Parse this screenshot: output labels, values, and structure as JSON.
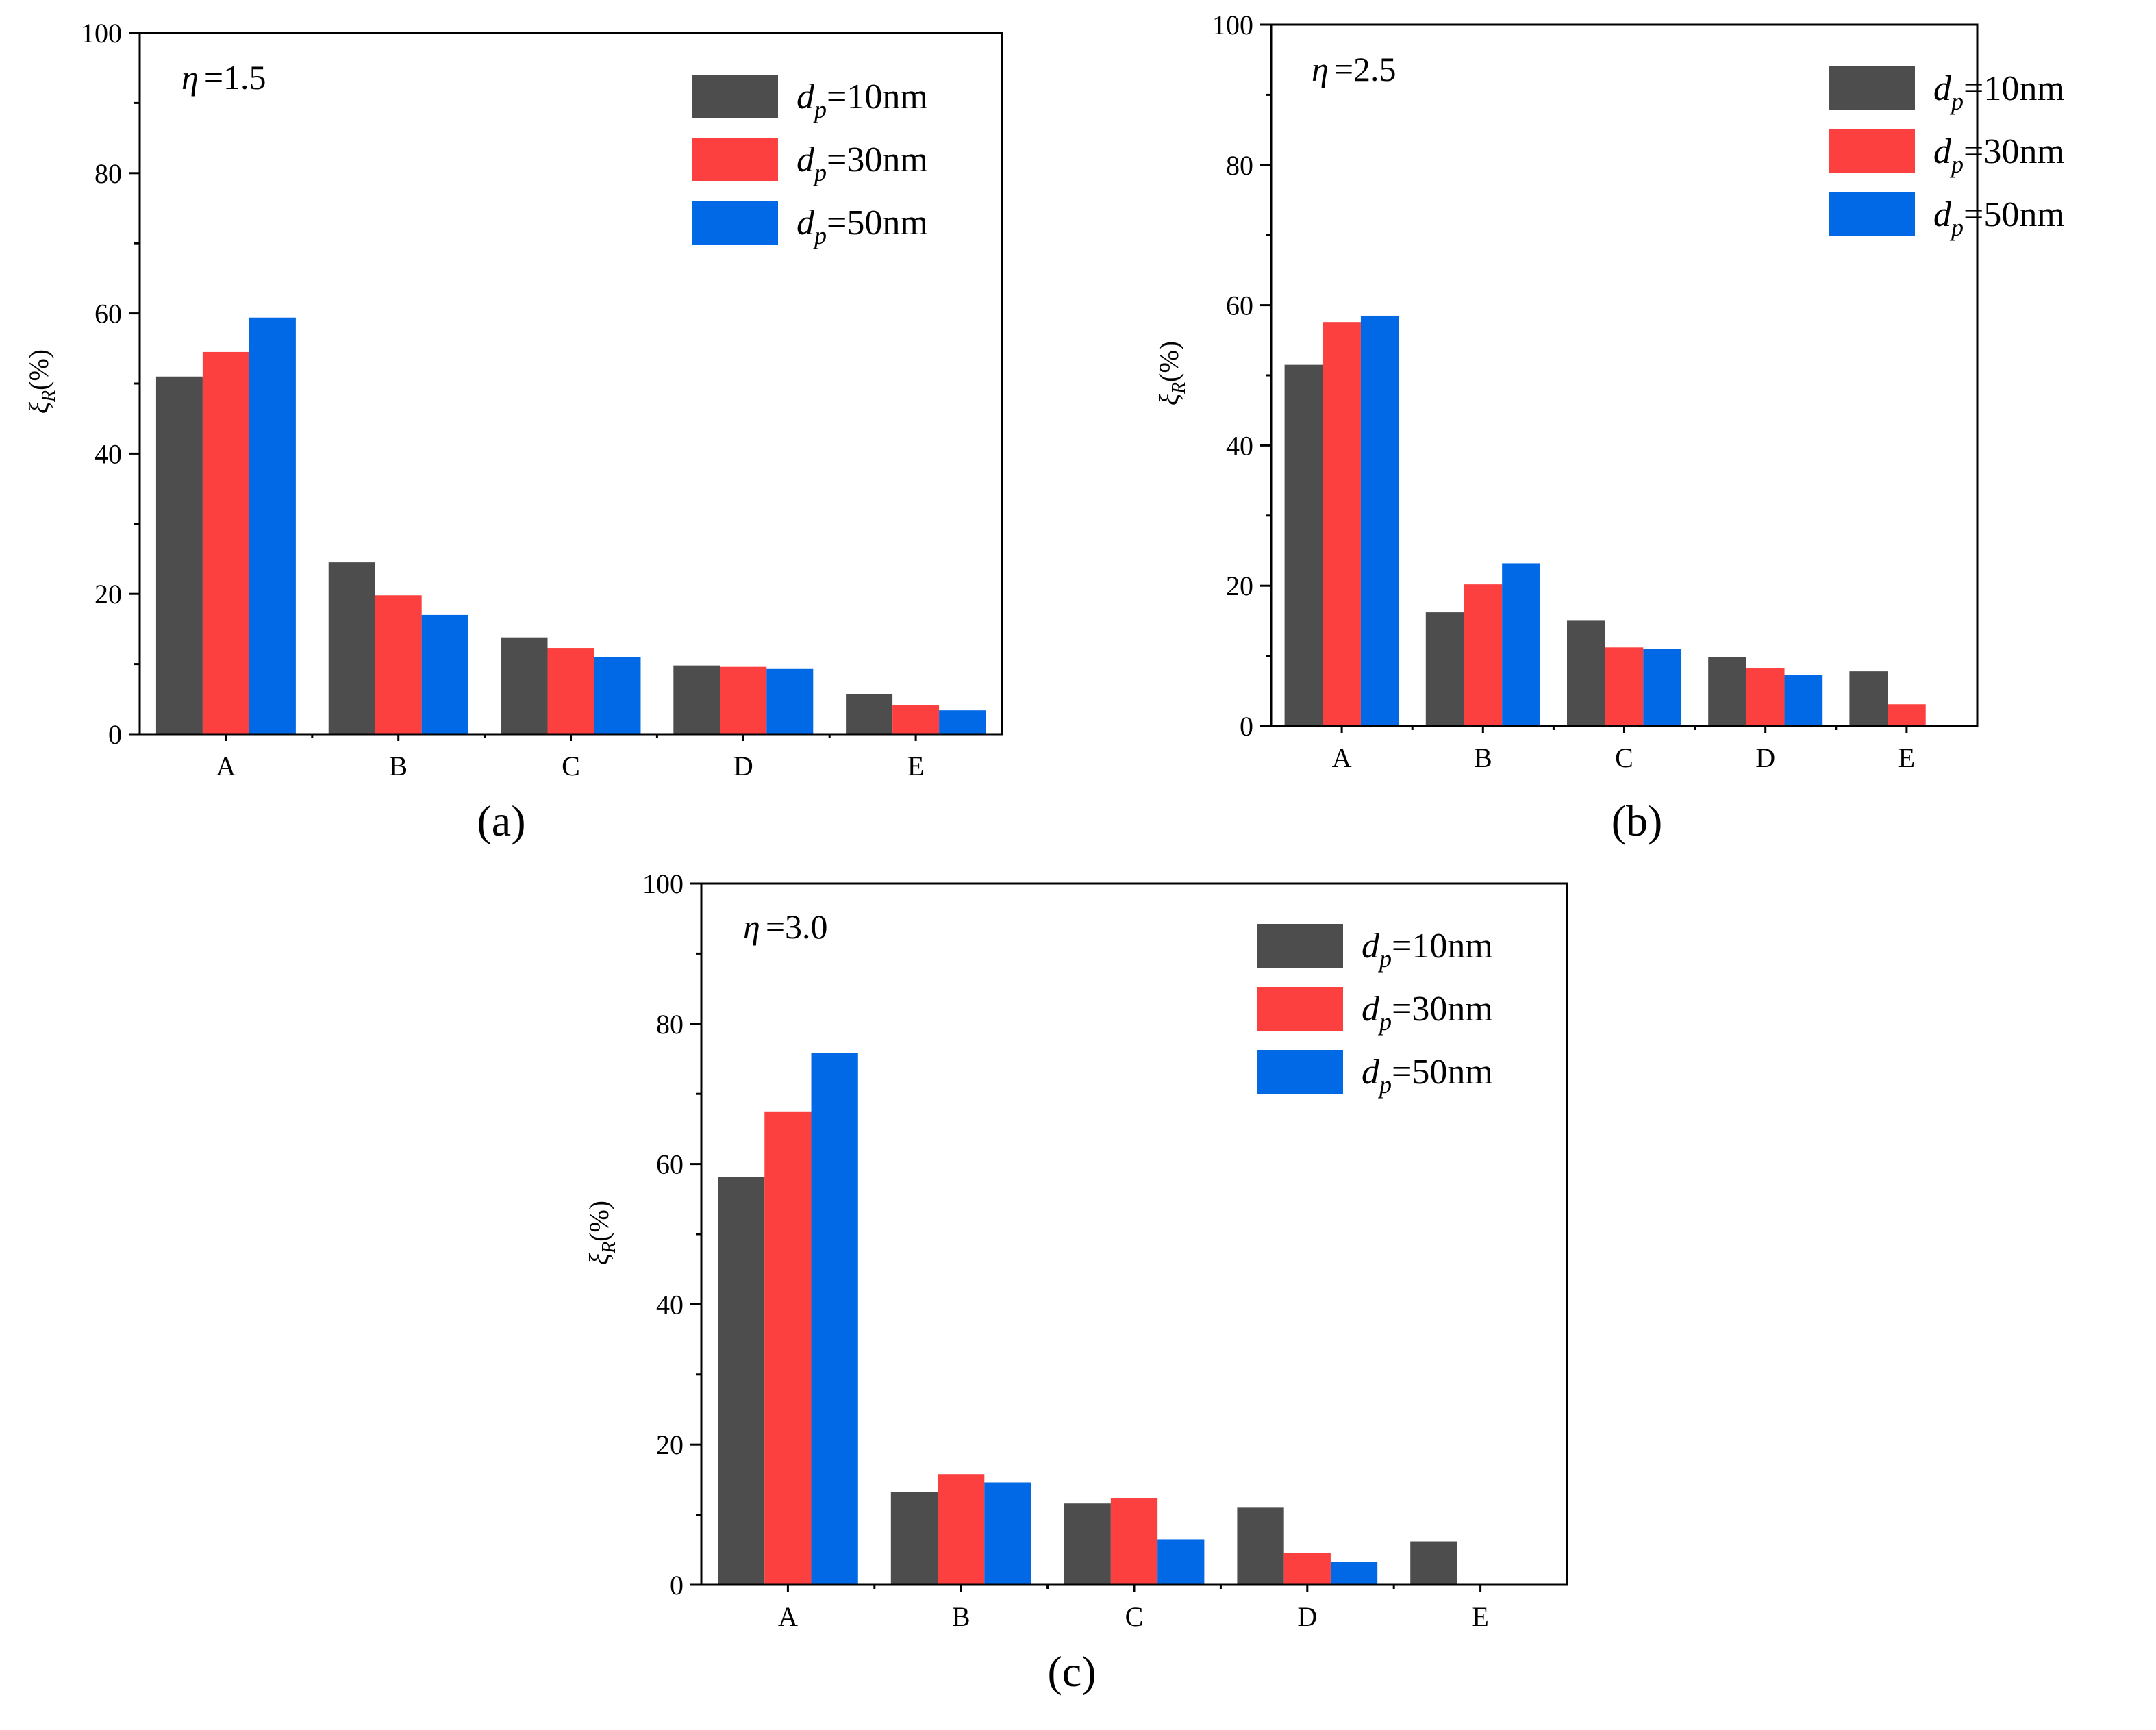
{
  "chart_data": [
    {
      "type": "bar",
      "panel_label": "(a)",
      "annotation": {
        "symbol": "η",
        "text": "=1.5"
      },
      "ylabel": {
        "symbol": "ξ",
        "sub": "R",
        "unit": "(%)"
      },
      "xlabel": "",
      "ylim": [
        0,
        100
      ],
      "yticks": [
        "0",
        "20",
        "40",
        "60",
        "80",
        "100"
      ],
      "categories": [
        "A",
        "B",
        "C",
        "D",
        "E"
      ],
      "legend_position": "top-right",
      "series": [
        {
          "name": "dp=10nm",
          "label_var": "d",
          "label_sub": "p",
          "label_rest": "=10nm",
          "color": "#4d4d4d",
          "values": [
            51,
            24.5,
            13.8,
            9.8,
            5.7
          ]
        },
        {
          "name": "dp=30nm",
          "label_var": "d",
          "label_sub": "p",
          "label_rest": "=30nm",
          "color": "#fc4040",
          "values": [
            54.5,
            19.8,
            12.3,
            9.6,
            4.1
          ]
        },
        {
          "name": "dp=50nm",
          "label_var": "d",
          "label_sub": "p",
          "label_rest": "=50nm",
          "color": "#0169e6",
          "values": [
            59.4,
            17.0,
            11.0,
            9.3,
            3.4
          ]
        }
      ]
    },
    {
      "type": "bar",
      "panel_label": "(b)",
      "annotation": {
        "symbol": "η",
        "text": "=2.5"
      },
      "ylabel": {
        "symbol": "ξ",
        "sub": "R",
        "unit": "(%)"
      },
      "xlabel": "",
      "ylim": [
        0,
        100
      ],
      "yticks": [
        "0",
        "20",
        "40",
        "60",
        "80",
        "100"
      ],
      "categories": [
        "A",
        "B",
        "C",
        "D",
        "E"
      ],
      "legend_position": "top-right",
      "series": [
        {
          "name": "dp=10nm",
          "label_var": "d",
          "label_sub": "p",
          "label_rest": "=10nm",
          "color": "#4d4d4d",
          "values": [
            51.5,
            16.2,
            15.0,
            9.8,
            7.8
          ]
        },
        {
          "name": "dp=30nm",
          "label_var": "d",
          "label_sub": "p",
          "label_rest": "=30nm",
          "color": "#fc4040",
          "values": [
            57.6,
            20.2,
            11.2,
            8.2,
            3.1
          ]
        },
        {
          "name": "dp=50nm",
          "label_var": "d",
          "label_sub": "p",
          "label_rest": "=50nm",
          "color": "#0169e6",
          "values": [
            58.5,
            23.2,
            11.0,
            7.3,
            0
          ]
        }
      ]
    },
    {
      "type": "bar",
      "panel_label": "(c)",
      "annotation": {
        "symbol": "η",
        "text": "=3.0"
      },
      "ylabel": {
        "symbol": "ξ",
        "sub": "R",
        "unit": "(%)"
      },
      "xlabel": "",
      "ylim": [
        0,
        100
      ],
      "yticks": [
        "0",
        "20",
        "40",
        "60",
        "80",
        "100"
      ],
      "categories": [
        "A",
        "B",
        "C",
        "D",
        "E"
      ],
      "legend_position": "top-right",
      "series": [
        {
          "name": "dp=10nm",
          "label_var": "d",
          "label_sub": "p",
          "label_rest": "=10nm",
          "color": "#4d4d4d",
          "values": [
            58.2,
            13.2,
            11.6,
            11.0,
            6.2
          ]
        },
        {
          "name": "dp=30nm",
          "label_var": "d",
          "label_sub": "p",
          "label_rest": "=30nm",
          "color": "#fc4040",
          "values": [
            67.5,
            15.8,
            12.4,
            4.5,
            0
          ]
        },
        {
          "name": "dp=50nm",
          "label_var": "d",
          "label_sub": "p",
          "label_rest": "=50nm",
          "color": "#0169e6",
          "values": [
            75.8,
            14.6,
            6.5,
            3.3,
            0
          ]
        }
      ]
    }
  ]
}
